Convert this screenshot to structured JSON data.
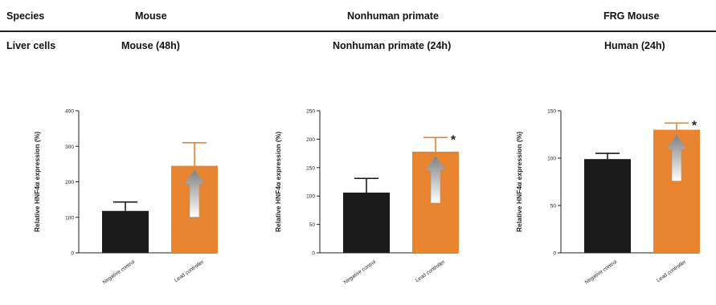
{
  "table": {
    "row1_label": "Species",
    "row2_label": "Liver cells",
    "species": [
      "Mouse",
      "Nonhuman primate",
      "FRG Mouse"
    ],
    "liver_cells": [
      "Mouse (48h)",
      "Nonhuman primate (24h)",
      "Human (24h)"
    ]
  },
  "colors": {
    "control": "#1a1a1a",
    "lead": "#e8842f",
    "arrow": "#7f7f7f"
  },
  "chart_data": [
    {
      "type": "bar",
      "categories": [
        "Negative control",
        "Lead controller"
      ],
      "values": [
        118,
        245
      ],
      "errors": [
        25,
        65
      ],
      "ylabel": "Relative HNF4α expression (%)",
      "ylim": [
        0,
        400
      ],
      "yticks": [
        0,
        100,
        200,
        300,
        400
      ],
      "significance": [
        "",
        ""
      ]
    },
    {
      "type": "bar",
      "categories": [
        "Negative control",
        "Lead controller"
      ],
      "values": [
        106,
        178
      ],
      "errors": [
        25,
        25
      ],
      "ylabel": "Relative HNF4α expression (%)",
      "ylim": [
        0,
        250
      ],
      "yticks": [
        0,
        50,
        100,
        150,
        200,
        250
      ],
      "significance": [
        "",
        "*"
      ]
    },
    {
      "type": "bar",
      "categories": [
        "Negative control",
        "Lead controller"
      ],
      "values": [
        99,
        130
      ],
      "errors": [
        6,
        7
      ],
      "ylabel": "Relative HNF4α expression (%)",
      "ylim": [
        0,
        150
      ],
      "yticks": [
        0,
        50,
        100,
        150
      ],
      "significance": [
        "",
        "*"
      ]
    }
  ]
}
